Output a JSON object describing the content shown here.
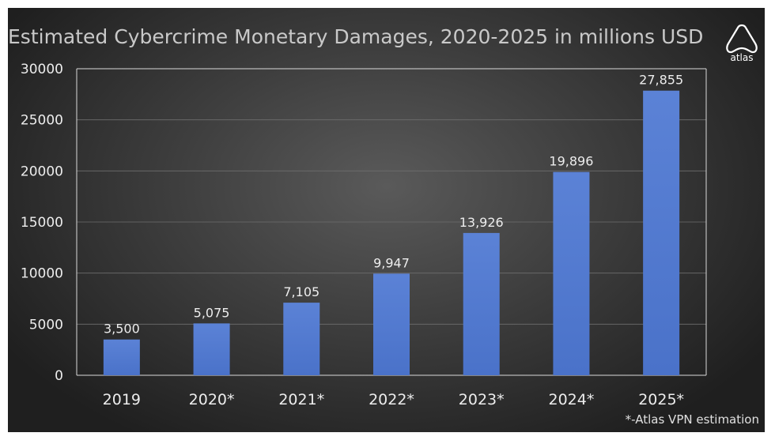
{
  "chart_data": {
    "type": "bar",
    "title": "Estimated Cybercrime Monetary Damages, 2020-2025 in millions USD",
    "categories": [
      "2019",
      "2020*",
      "2021*",
      "2022*",
      "2023*",
      "2024*",
      "2025*"
    ],
    "values": [
      3500,
      5075,
      7105,
      9947,
      13926,
      19896,
      27855
    ],
    "data_labels": [
      "3,500",
      "5,075",
      "7,105",
      "9,947",
      "13,926",
      "19,896",
      "27,855"
    ],
    "yticks": [
      "0",
      "5000",
      "10000",
      "15000",
      "20000",
      "25000",
      "30000"
    ],
    "ylim": [
      0,
      30000
    ],
    "xlabel": "",
    "ylabel": "",
    "grid": true,
    "legend": "none",
    "bar_color": "#4a72c9"
  },
  "logo": {
    "text": "atlas",
    "icon": "atlas-logo-icon"
  },
  "footnote": "*-Atlas VPN estimation"
}
